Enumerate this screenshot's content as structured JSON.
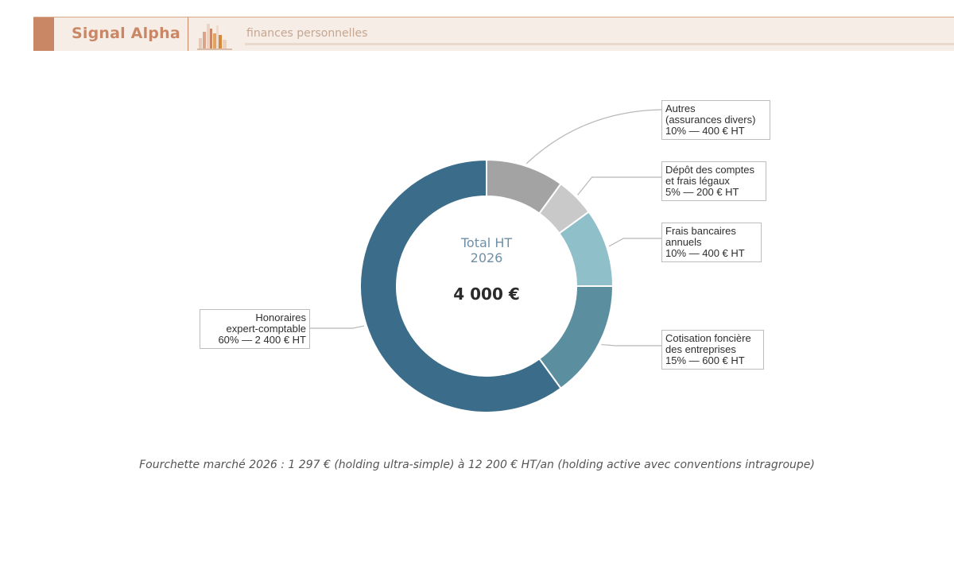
{
  "header": {
    "brand": "Signal Alpha",
    "tagline": "finances personnelles",
    "logo_icon": "bar-chart-icon",
    "accent_color": "#c98765"
  },
  "chart_data": {
    "type": "pie",
    "donut": true,
    "center_title_line1": "Total HT",
    "center_title_line2": "2026",
    "center_value": "4 000 €",
    "total": 4000,
    "slices": [
      {
        "name_lines": [
          "Autres",
          "(assurances  divers)"
        ],
        "percent": 10,
        "value": 400,
        "value_label": "10%  —  400 € HT",
        "color": "#a3a3a3"
      },
      {
        "name_lines": [
          "Dépôt des comptes",
          "et frais légaux"
        ],
        "percent": 5,
        "value": 200,
        "value_label": "5%  —  200 € HT",
        "color": "#c9c9c9"
      },
      {
        "name_lines": [
          "Frais bancaires",
          "annuels"
        ],
        "percent": 10,
        "value": 400,
        "value_label": "10%  —  400 € HT",
        "color": "#8fbfc9"
      },
      {
        "name_lines": [
          "Cotisation foncière",
          "des entreprises"
        ],
        "percent": 15,
        "value": 600,
        "value_label": "15%  —  600 € HT",
        "color": "#5b8fa0"
      },
      {
        "name_lines": [
          "Honoraires",
          "expert-comptable"
        ],
        "percent": 60,
        "value": 2400,
        "value_label": "60%  —  2 400 € HT",
        "color": "#3b6d8a"
      }
    ]
  },
  "footnote": "Fourchette marché 2026 : 1 297 € (holding ultra-simple) à 12 200 € HT/an (holding active avec conventions intragroupe)"
}
